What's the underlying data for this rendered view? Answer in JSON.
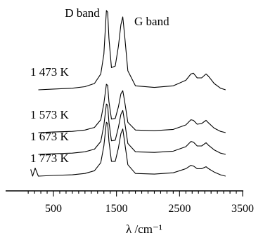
{
  "chart_data": {
    "type": "line",
    "title": "",
    "xlabel": "λ /cm⁻¹",
    "ylabel": "",
    "xlim": [
      100,
      3500
    ],
    "grid": false,
    "x_ticks": [
      500,
      1500,
      2500,
      3500
    ],
    "x_tick_labels": [
      "500",
      "1500",
      "2500",
      "3500"
    ],
    "annotations": [
      {
        "text": "D band",
        "x": 1350
      },
      {
        "text": "G band",
        "x": 1600
      }
    ],
    "series": [
      {
        "name": "1 473 K",
        "x": [
          260,
          500,
          800,
          1000,
          1150,
          1250,
          1300,
          1340,
          1360,
          1380,
          1420,
          1480,
          1530,
          1570,
          1600,
          1630,
          1680,
          1800,
          2100,
          2400,
          2600,
          2680,
          2720,
          2780,
          2850,
          2920,
          2960,
          3050,
          3150,
          3230
        ],
        "values": [
          0.0,
          0.01,
          0.02,
          0.04,
          0.08,
          0.2,
          0.45,
          1.0,
          0.98,
          0.65,
          0.28,
          0.3,
          0.55,
          0.82,
          0.92,
          0.68,
          0.24,
          0.05,
          0.03,
          0.05,
          0.12,
          0.2,
          0.21,
          0.15,
          0.15,
          0.2,
          0.17,
          0.08,
          0.02,
          0.0
        ]
      },
      {
        "name": "1 573 K",
        "x": [
          260,
          500,
          800,
          1000,
          1150,
          1250,
          1300,
          1340,
          1360,
          1380,
          1420,
          1480,
          1530,
          1570,
          1600,
          1630,
          1680,
          1800,
          2100,
          2400,
          2600,
          2680,
          2720,
          2780,
          2850,
          2920,
          2960,
          3050,
          3150,
          3230
        ],
        "values": [
          0.0,
          0.01,
          0.02,
          0.04,
          0.08,
          0.2,
          0.45,
          0.75,
          0.73,
          0.48,
          0.21,
          0.22,
          0.4,
          0.6,
          0.65,
          0.48,
          0.16,
          0.04,
          0.03,
          0.05,
          0.12,
          0.2,
          0.19,
          0.13,
          0.14,
          0.19,
          0.15,
          0.07,
          0.02,
          0.0
        ]
      },
      {
        "name": "1 673 K",
        "x": [
          260,
          500,
          800,
          1000,
          1150,
          1250,
          1300,
          1340,
          1360,
          1380,
          1420,
          1480,
          1530,
          1570,
          1600,
          1630,
          1680,
          1800,
          2100,
          2400,
          2600,
          2680,
          2720,
          2780,
          2850,
          2920,
          2960,
          3050,
          3150,
          3230
        ],
        "values": [
          0.0,
          0.01,
          0.02,
          0.04,
          0.08,
          0.2,
          0.45,
          0.78,
          0.76,
          0.5,
          0.21,
          0.22,
          0.42,
          0.62,
          0.68,
          0.5,
          0.17,
          0.04,
          0.03,
          0.05,
          0.12,
          0.2,
          0.19,
          0.13,
          0.13,
          0.18,
          0.14,
          0.07,
          0.02,
          0.0
        ]
      },
      {
        "name": "1 773 K",
        "x": [
          140,
          170,
          210,
          260,
          500,
          800,
          1000,
          1150,
          1250,
          1300,
          1340,
          1360,
          1380,
          1420,
          1480,
          1530,
          1570,
          1600,
          1630,
          1680,
          1800,
          2100,
          2400,
          2600,
          2680,
          2720,
          2780,
          2850,
          2920,
          2960,
          3050,
          3150,
          3230
        ],
        "values": [
          0.1,
          0.0,
          0.12,
          0.0,
          0.01,
          0.02,
          0.04,
          0.08,
          0.2,
          0.45,
          0.8,
          0.78,
          0.52,
          0.22,
          0.22,
          0.42,
          0.63,
          0.7,
          0.5,
          0.17,
          0.04,
          0.03,
          0.05,
          0.11,
          0.16,
          0.15,
          0.11,
          0.11,
          0.14,
          0.11,
          0.06,
          0.02,
          0.0
        ]
      }
    ]
  }
}
